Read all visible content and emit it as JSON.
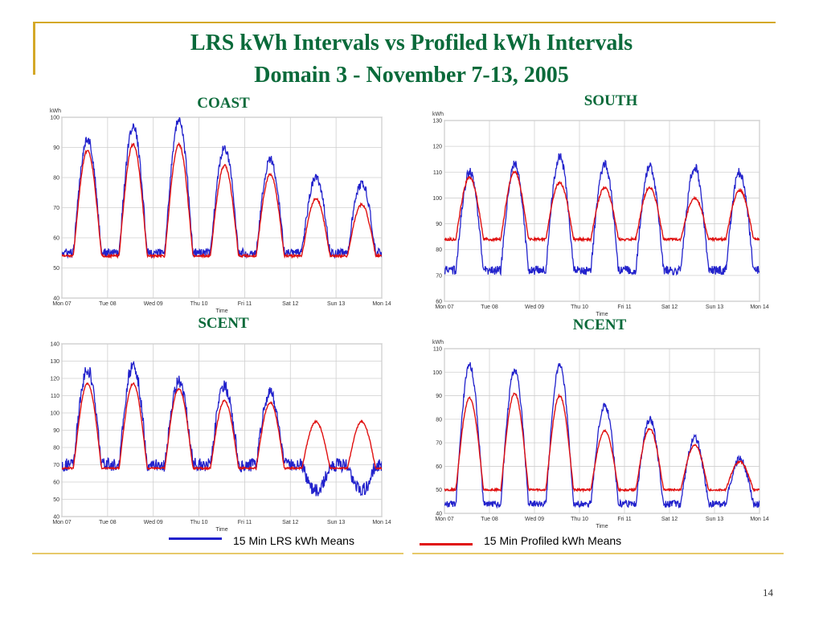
{
  "slide": {
    "title_line1": "LRS kWh Intervals vs Profiled kWh Intervals",
    "title_line2": "Domain 3 - November 7-13, 2005",
    "page_number": "14"
  },
  "colors": {
    "lrs": "#2222cc",
    "profiled": "#e01010",
    "title": "#0a6a3a",
    "accent": "#d4a828"
  },
  "legend": {
    "lrs_label": "15 Min LRS kWh Means",
    "profiled_label": "15 Min Profiled kWh Means"
  },
  "chart_data": [
    {
      "panel": "COAST",
      "type": "line",
      "title": "COAST",
      "ylabel": "kWh",
      "xlabel": "Time",
      "ylim": [
        40,
        100
      ],
      "yticks": [
        40,
        50,
        60,
        70,
        80,
        90,
        100
      ],
      "xticklabels": [
        "Mon 07",
        "Tue 08",
        "Wed 09",
        "Thu 10",
        "Fri 11",
        "Sat 12",
        "Sun 13",
        "Mon 14"
      ],
      "grid": true,
      "series": [
        {
          "key": "lrs",
          "base": 55,
          "peaks": [
            93,
            97,
            99,
            90,
            86,
            80,
            78
          ],
          "noise": 1.5
        },
        {
          "key": "profiled",
          "base": 54,
          "peaks": [
            89,
            91,
            91,
            84,
            81,
            73,
            71
          ],
          "noise": 0.4
        }
      ]
    },
    {
      "panel": "SOUTH",
      "type": "line",
      "title": "SOUTH",
      "ylabel": "kWh",
      "xlabel": "Time",
      "ylim": [
        60,
        130
      ],
      "yticks": [
        60,
        70,
        80,
        90,
        100,
        110,
        120,
        130
      ],
      "xticklabels": [
        "Mon 07",
        "Tue 08",
        "Wed 09",
        "Thu 10",
        "Fri 11",
        "Sat 12",
        "Sun 13",
        "Mon 14"
      ],
      "grid": true,
      "series": [
        {
          "key": "lrs",
          "base": 72,
          "peaks": [
            110,
            113,
            116,
            113,
            112,
            112,
            110
          ],
          "noise": 1.8
        },
        {
          "key": "profiled",
          "base": 84,
          "peaks": [
            108,
            110,
            106,
            104,
            104,
            100,
            103
          ],
          "noise": 0.5
        }
      ]
    },
    {
      "panel": "SCENT",
      "type": "line",
      "title": "SCENT",
      "ylabel": "",
      "xlabel": "Time",
      "ylim": [
        40,
        140
      ],
      "yticks": [
        40,
        50,
        60,
        70,
        80,
        90,
        100,
        110,
        120,
        130,
        140
      ],
      "xticklabels": [
        "Mon 07",
        "Tue 08",
        "Wed 09",
        "Thu 10",
        "Fri 11",
        "Sat 12",
        "Sun 13",
        "Mon 14"
      ],
      "grid": true,
      "series": [
        {
          "key": "lrs",
          "base": 70,
          "peaks": [
            125,
            128,
            118,
            115,
            112,
            55,
            55
          ],
          "noise": 4
        },
        {
          "key": "profiled",
          "base": 68,
          "peaks": [
            117,
            117,
            114,
            107,
            106,
            95,
            95
          ],
          "noise": 0.5
        }
      ]
    },
    {
      "panel": "NCENT",
      "type": "line",
      "title": "NCENT",
      "ylabel": "kWh",
      "xlabel": "Time",
      "ylim": [
        40,
        110
      ],
      "yticks": [
        40,
        50,
        60,
        70,
        80,
        90,
        100,
        110
      ],
      "xticklabels": [
        "Mon 07",
        "Tue 08",
        "Wed 09",
        "Thu 10",
        "Fri 11",
        "Sat 12",
        "Sun 13",
        "Mon 14"
      ],
      "grid": true,
      "series": [
        {
          "key": "lrs",
          "base": 44,
          "peaks": [
            103,
            101,
            103,
            86,
            80,
            72,
            63
          ],
          "noise": 1.5
        },
        {
          "key": "profiled",
          "base": 50,
          "peaks": [
            89,
            91,
            90,
            75,
            76,
            69,
            62
          ],
          "noise": 0.4
        }
      ]
    }
  ]
}
